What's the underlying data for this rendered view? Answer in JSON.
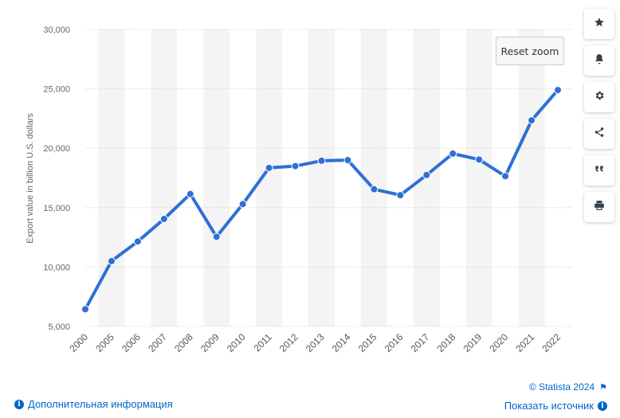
{
  "chart_data": {
    "type": "line",
    "ylabel": "Export value in billion U.S. dollars",
    "xlabel": "",
    "ylim": [
      5000,
      30000
    ],
    "yticks": [
      5000,
      10000,
      15000,
      20000,
      25000,
      30000
    ],
    "ytick_labels": [
      "5,000",
      "10,000",
      "15,000",
      "20,000",
      "25,000",
      "30,000"
    ],
    "categories": [
      "2000",
      "2005",
      "2006",
      "2007",
      "2008",
      "2009",
      "2010",
      "2011",
      "2012",
      "2013",
      "2014",
      "2015",
      "2016",
      "2017",
      "2018",
      "2019",
      "2020",
      "2021",
      "2022"
    ],
    "values": [
      6450,
      10500,
      12150,
      14050,
      16150,
      12550,
      15300,
      18350,
      18500,
      18950,
      19000,
      16550,
      16050,
      17750,
      19550,
      19050,
      17650,
      22350,
      24900
    ],
    "color": "#2f6fd6",
    "grid": true
  },
  "buttons": {
    "reset_zoom": "Reset zoom"
  },
  "toolbar": {
    "items": [
      "star-icon",
      "bell-icon",
      "gear-icon",
      "share-icon",
      "quote-icon",
      "print-icon"
    ]
  },
  "footer": {
    "copyright": "© Statista 2024",
    "more_info": "Дополнительная информация",
    "show_source": "Показать источник"
  }
}
